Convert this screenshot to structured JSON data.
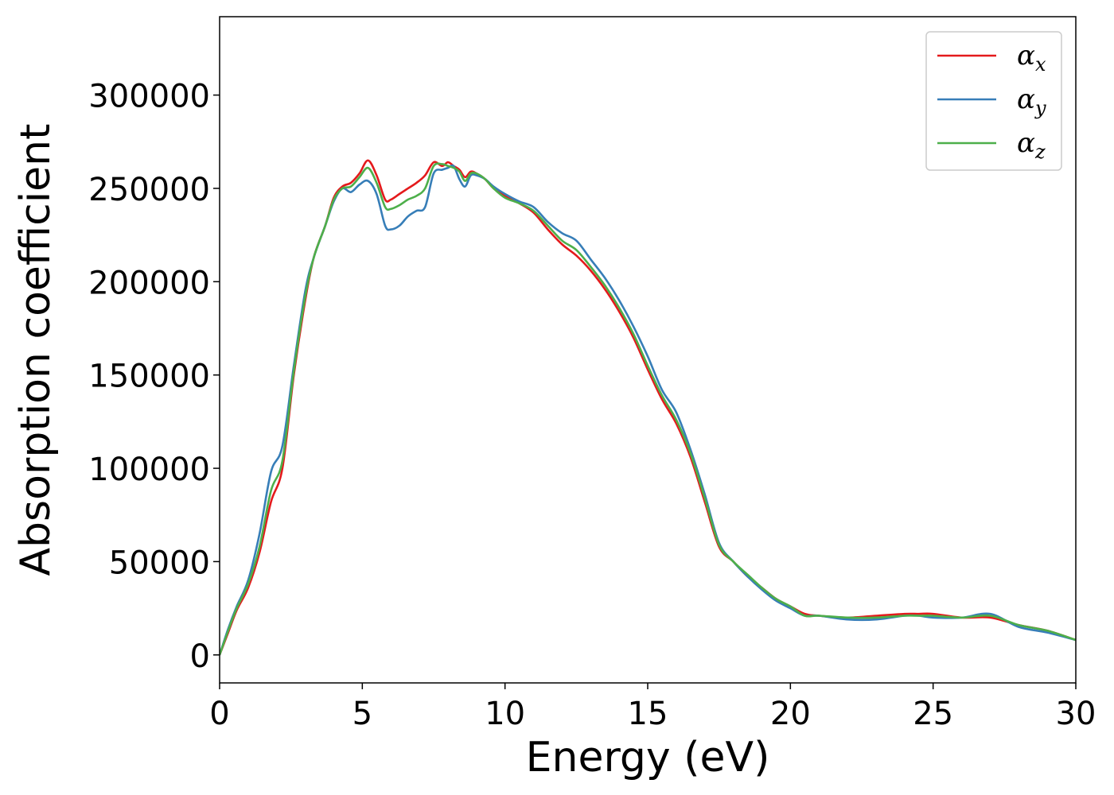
{
  "chart_data": {
    "type": "line",
    "xlabel": "Energy (eV)",
    "ylabel": "Absorption coefficient",
    "xlim": [
      0,
      30
    ],
    "ylim": [
      -15000,
      342000
    ],
    "xticks": [
      0,
      5,
      10,
      15,
      20,
      25,
      30
    ],
    "xtick_labels": [
      "0",
      "5",
      "10",
      "15",
      "20",
      "25",
      "30"
    ],
    "yticks": [
      0,
      50000,
      100000,
      150000,
      200000,
      250000,
      300000
    ],
    "ytick_labels": [
      "0",
      "50000",
      "100000",
      "150000",
      "200000",
      "250000",
      "300000"
    ],
    "grid": false,
    "legend": {
      "position": "top-right",
      "entries": [
        {
          "name": "α",
          "sub": "x",
          "color": "#e41a1c"
        },
        {
          "name": "α",
          "sub": "y",
          "color": "#377eb8"
        },
        {
          "name": "α",
          "sub": "z",
          "color": "#4daf4a"
        }
      ]
    },
    "series": [
      {
        "name": "αx",
        "color": "#e41a1c",
        "x": [
          0,
          0.3,
          0.6,
          1.0,
          1.4,
          1.8,
          2.2,
          2.6,
          3.0,
          3.3,
          3.7,
          4.0,
          4.3,
          4.6,
          4.9,
          5.2,
          5.5,
          5.8,
          6.0,
          6.3,
          6.6,
          6.9,
          7.2,
          7.5,
          7.8,
          8.0,
          8.2,
          8.4,
          8.6,
          8.8,
          9.0,
          9.3,
          9.6,
          10.0,
          10.5,
          11.0,
          11.5,
          12.0,
          12.5,
          13.0,
          13.5,
          14.0,
          14.5,
          15.0,
          15.5,
          16.0,
          16.5,
          17.0,
          17.5,
          18.0,
          18.5,
          19.0,
          19.5,
          20.0,
          20.5,
          21.0,
          22.0,
          23.0,
          24.0,
          24.5,
          25.0,
          26.0,
          27.0,
          28.0,
          29.0,
          30.0
        ],
        "y": [
          0,
          12000,
          24000,
          36000,
          55000,
          82000,
          100000,
          150000,
          190000,
          213000,
          230000,
          245000,
          251000,
          253000,
          258000,
          265000,
          257000,
          244000,
          244000,
          247000,
          250000,
          253000,
          257000,
          264000,
          262000,
          264000,
          262000,
          260000,
          256000,
          259000,
          258000,
          255000,
          250000,
          246000,
          242000,
          237000,
          228000,
          220000,
          214000,
          206000,
          196000,
          184000,
          170000,
          153000,
          137000,
          124000,
          106000,
          82000,
          58000,
          50000,
          42000,
          36000,
          30000,
          26000,
          22000,
          21000,
          20000,
          21000,
          22000,
          22000,
          22000,
          20000,
          20000,
          16000,
          13000,
          8000
        ]
      },
      {
        "name": "αy",
        "color": "#377eb8",
        "x": [
          0,
          0.3,
          0.6,
          1.0,
          1.4,
          1.8,
          2.2,
          2.6,
          3.0,
          3.3,
          3.7,
          4.0,
          4.3,
          4.6,
          4.9,
          5.2,
          5.5,
          5.8,
          6.0,
          6.3,
          6.6,
          6.9,
          7.2,
          7.5,
          7.8,
          8.0,
          8.2,
          8.4,
          8.6,
          8.8,
          9.0,
          9.3,
          9.6,
          10.0,
          10.5,
          11.0,
          11.5,
          12.0,
          12.5,
          13.0,
          13.5,
          14.0,
          14.5,
          15.0,
          15.5,
          16.0,
          16.5,
          17.0,
          17.5,
          18.0,
          18.5,
          19.0,
          19.5,
          20.0,
          20.5,
          21.0,
          22.0,
          23.0,
          24.0,
          24.5,
          25.0,
          26.0,
          27.0,
          28.0,
          29.0,
          30.0
        ],
        "y": [
          0,
          14000,
          26000,
          40000,
          65000,
          98000,
          112000,
          155000,
          195000,
          213000,
          230000,
          243000,
          250000,
          248000,
          252000,
          254000,
          247000,
          230000,
          228000,
          230000,
          235000,
          238000,
          240000,
          258000,
          260000,
          261000,
          262000,
          255000,
          251000,
          257000,
          257000,
          255000,
          251000,
          247000,
          243000,
          240000,
          232000,
          226000,
          222000,
          212000,
          202000,
          190000,
          176000,
          160000,
          142000,
          130000,
          110000,
          86000,
          60000,
          50000,
          42000,
          35000,
          29000,
          25000,
          21000,
          21000,
          19000,
          19000,
          21000,
          21000,
          20000,
          20000,
          22000,
          15000,
          12000,
          8000
        ]
      },
      {
        "name": "αz",
        "color": "#4daf4a",
        "x": [
          0,
          0.3,
          0.6,
          1.0,
          1.4,
          1.8,
          2.2,
          2.6,
          3.0,
          3.3,
          3.7,
          4.0,
          4.3,
          4.6,
          4.9,
          5.2,
          5.5,
          5.8,
          6.0,
          6.3,
          6.6,
          6.9,
          7.2,
          7.5,
          7.8,
          8.0,
          8.2,
          8.4,
          8.6,
          8.8,
          9.0,
          9.3,
          9.6,
          10.0,
          10.5,
          11.0,
          11.5,
          12.0,
          12.5,
          13.0,
          13.5,
          14.0,
          14.5,
          15.0,
          15.5,
          16.0,
          16.5,
          17.0,
          17.5,
          18.0,
          18.5,
          19.0,
          19.5,
          20.0,
          20.5,
          21.0,
          22.0,
          23.0,
          24.0,
          24.5,
          25.0,
          26.0,
          27.0,
          28.0,
          29.0,
          30.0
        ],
        "y": [
          0,
          13000,
          25000,
          38000,
          58000,
          88000,
          104000,
          152000,
          192000,
          213000,
          230000,
          244000,
          250000,
          251000,
          256000,
          261000,
          253000,
          240000,
          239000,
          241000,
          244000,
          246000,
          250000,
          262000,
          263000,
          262000,
          261000,
          259000,
          254000,
          258000,
          258000,
          255000,
          250000,
          245000,
          242000,
          238000,
          230000,
          222000,
          217000,
          208000,
          198000,
          186000,
          172000,
          155000,
          139000,
          126000,
          108000,
          84000,
          59000,
          50000,
          43000,
          36000,
          30000,
          26000,
          21000,
          21000,
          20000,
          20000,
          21000,
          21000,
          21000,
          20000,
          21000,
          16000,
          13000,
          8000
        ]
      }
    ]
  }
}
